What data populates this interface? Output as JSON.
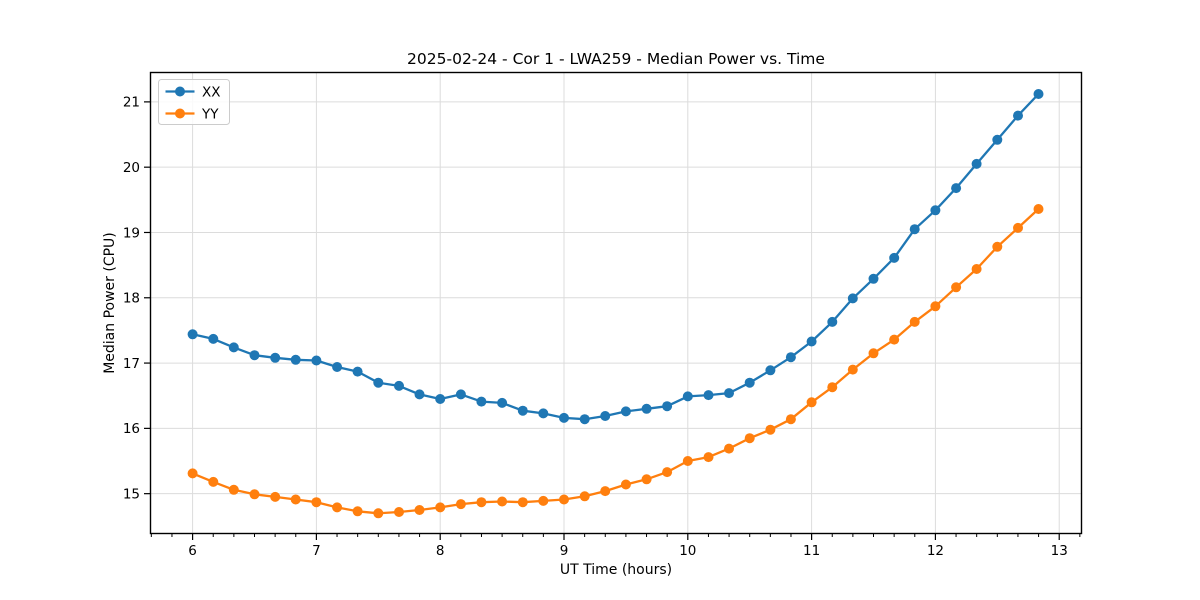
{
  "figure": {
    "title": "2025-02-24 - Cor 1 - LWA259 - Median Power vs. Time"
  },
  "chart_data": {
    "type": "line",
    "title": "2025-02-24 - Cor 1 - LWA259 - Median Power vs. Time",
    "xlabel": "UT Time (hours)",
    "ylabel": "Median Power (CPU)",
    "xlim": [
      5.66,
      13.18
    ],
    "ylim": [
      14.39,
      21.45
    ],
    "x_ticks": [
      6,
      7,
      8,
      9,
      10,
      11,
      12,
      13
    ],
    "x_tick_labels": [
      "6",
      "7",
      "8",
      "9",
      "10",
      "11",
      "12",
      "13"
    ],
    "x_minor_tick_step": 0.1667,
    "y_ticks": [
      15,
      16,
      17,
      18,
      19,
      20,
      21
    ],
    "y_tick_labels": [
      "15",
      "16",
      "17",
      "18",
      "19",
      "20",
      "21"
    ],
    "grid": true,
    "grid_color": "#dcdcdc",
    "legend_position": "upper-left",
    "marker": "o",
    "x": [
      6.0,
      6.167,
      6.333,
      6.5,
      6.667,
      6.833,
      7.0,
      7.167,
      7.333,
      7.5,
      7.667,
      7.833,
      8.0,
      8.167,
      8.333,
      8.5,
      8.667,
      8.833,
      9.0,
      9.167,
      9.333,
      9.5,
      9.667,
      9.833,
      10.0,
      10.167,
      10.333,
      10.5,
      10.667,
      10.833,
      11.0,
      11.167,
      11.333,
      11.5,
      11.667,
      11.833,
      12.0,
      12.167,
      12.333,
      12.5,
      12.667,
      12.833
    ],
    "series": [
      {
        "name": "XX",
        "color": "#1f77b4",
        "values": [
          17.44,
          17.37,
          17.24,
          17.12,
          17.08,
          17.05,
          17.04,
          16.94,
          16.87,
          16.7,
          16.65,
          16.52,
          16.45,
          16.52,
          16.41,
          16.39,
          16.27,
          16.23,
          16.16,
          16.14,
          16.19,
          16.26,
          16.3,
          16.34,
          16.49,
          16.51,
          16.54,
          16.7,
          16.89,
          17.09,
          17.33,
          17.63,
          17.99,
          18.29,
          18.61,
          19.05,
          19.34,
          19.68,
          20.05,
          20.42,
          20.79,
          21.12
        ]
      },
      {
        "name": "YY",
        "color": "#ff7f0e",
        "values": [
          15.31,
          15.18,
          15.06,
          14.99,
          14.95,
          14.91,
          14.87,
          14.79,
          14.73,
          14.7,
          14.72,
          14.75,
          14.79,
          14.84,
          14.87,
          14.88,
          14.87,
          14.89,
          14.91,
          14.96,
          15.04,
          15.14,
          15.22,
          15.33,
          15.5,
          15.56,
          15.69,
          15.85,
          15.98,
          16.14,
          16.4,
          16.63,
          16.9,
          17.15,
          17.36,
          17.63,
          17.87,
          18.16,
          18.44,
          18.78,
          19.07,
          19.36
        ]
      }
    ]
  }
}
